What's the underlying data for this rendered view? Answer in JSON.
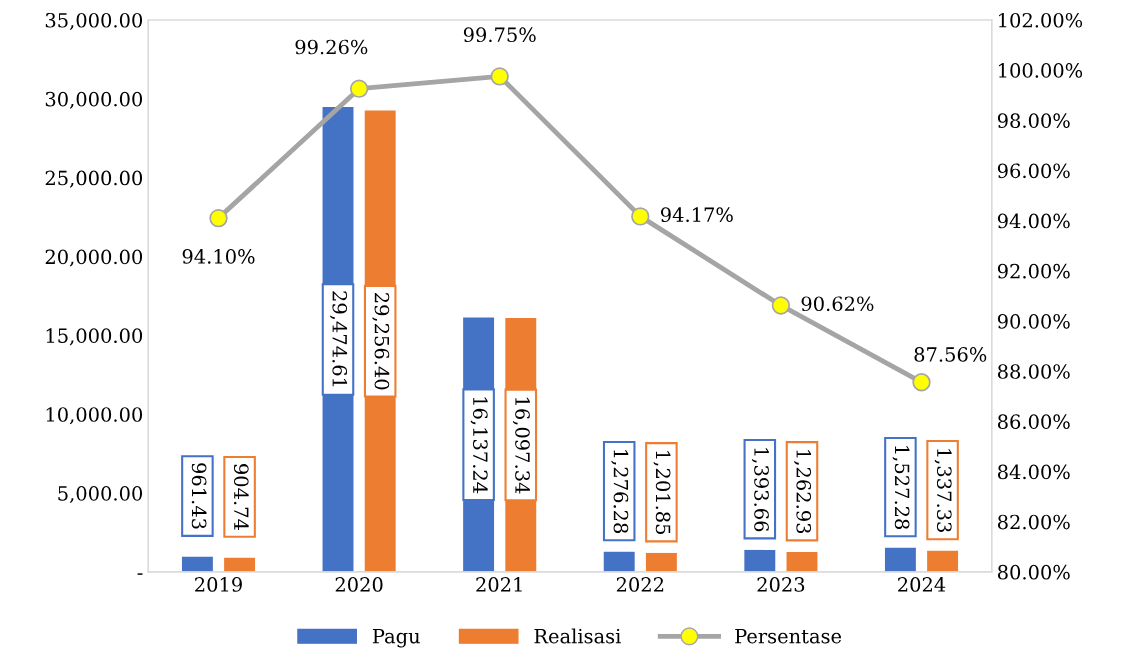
{
  "chart_data": {
    "type": "bar",
    "categories": [
      "2019",
      "2020",
      "2021",
      "2022",
      "2023",
      "2024"
    ],
    "series": [
      {
        "name": "Pagu",
        "color": "#4472c4",
        "values": [
          961.43,
          29474.61,
          16137.24,
          1276.28,
          1393.66,
          1527.28
        ],
        "value_labels": [
          "961.43",
          "29,474.61",
          "16,137.24",
          "1,276.28",
          "1,393.66",
          "1,527.28"
        ]
      },
      {
        "name": "Realisasi",
        "color": "#ed7d31",
        "values": [
          904.74,
          29256.4,
          16097.34,
          1201.85,
          1262.93,
          1337.33
        ],
        "value_labels": [
          "904.74",
          "29,256.40",
          "16,097.34",
          "1,201.85",
          "1,262.93",
          "1,337.33"
        ]
      },
      {
        "name": "Persentase",
        "type": "line",
        "axis": "y2",
        "color": "#a5a5a5",
        "marker": "circle",
        "values": [
          94.1,
          99.26,
          99.75,
          94.17,
          90.62,
          87.56
        ],
        "value_labels": [
          "94.10%",
          "99.26%",
          "99.75%",
          "94.17%",
          "90.62%",
          "87.56%"
        ]
      }
    ],
    "ylim": [
      0,
      35000
    ],
    "yticks": [
      {
        "value": 0,
        "label": "-"
      },
      {
        "value": 5000,
        "label": "5,000.00"
      },
      {
        "value": 10000,
        "label": "10,000.00"
      },
      {
        "value": 15000,
        "label": "15,000.00"
      },
      {
        "value": 20000,
        "label": "20,000.00"
      },
      {
        "value": 25000,
        "label": "25,000.00"
      },
      {
        "value": 30000,
        "label": "30,000.00"
      },
      {
        "value": 35000,
        "label": "35,000.00"
      }
    ],
    "y2lim": [
      80,
      102
    ],
    "y2ticks": [
      {
        "value": 80,
        "label": "80.00%"
      },
      {
        "value": 82,
        "label": "82.00%"
      },
      {
        "value": 84,
        "label": "84.00%"
      },
      {
        "value": 86,
        "label": "86.00%"
      },
      {
        "value": 88,
        "label": "88.00%"
      },
      {
        "value": 90,
        "label": "90.00%"
      },
      {
        "value": 92,
        "label": "92.00%"
      },
      {
        "value": 94,
        "label": "94.00%"
      },
      {
        "value": 96,
        "label": "96.00%"
      },
      {
        "value": 98,
        "label": "98.00%"
      },
      {
        "value": 100,
        "label": "100.00%"
      },
      {
        "value": 102,
        "label": "102.00%"
      }
    ],
    "grid": false,
    "legend": "bottom"
  }
}
